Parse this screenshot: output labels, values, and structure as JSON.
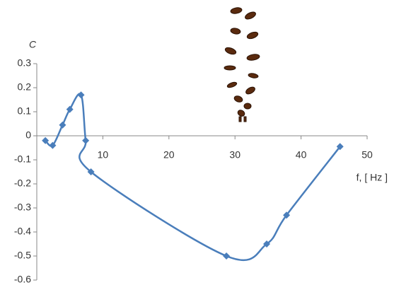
{
  "chart_data": {
    "type": "line",
    "y_label": "C",
    "x_label": "f, [ Hz ]",
    "x": [
      1.3,
      2.4,
      3.9,
      5.0,
      6.7,
      7.4,
      8.2,
      28.7,
      34.8,
      37.8,
      45.9
    ],
    "series": [
      {
        "name": "C",
        "color": "#4a7ebb",
        "values": [
          -0.02,
          -0.04,
          0.045,
          0.11,
          0.17,
          -0.02,
          -0.15,
          -0.5,
          -0.45,
          -0.33,
          -0.045
        ]
      }
    ],
    "xlim": [
      0,
      50
    ],
    "xticks": [
      10,
      20,
      30,
      40,
      50
    ],
    "ylim": [
      -0.6,
      0.3
    ],
    "yticks": [
      0.3,
      0.2,
      0.1,
      0,
      -0.1,
      -0.2,
      -0.3,
      -0.4,
      -0.5,
      -0.6
    ],
    "grid": false,
    "smooth": true
  }
}
